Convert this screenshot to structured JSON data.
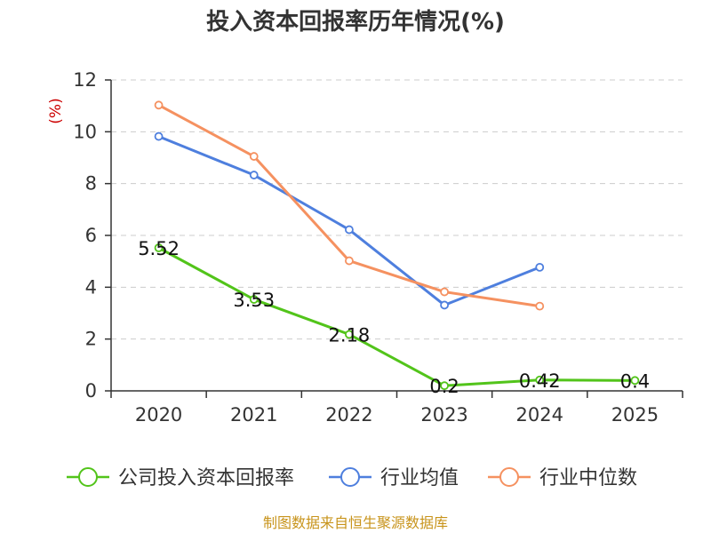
{
  "chart_data": {
    "type": "line",
    "title": "投入资本回报率历年情况(%)",
    "ylabel": "(%)",
    "xlabel": "",
    "categories": [
      "2020",
      "2021",
      "2022",
      "2023",
      "2024",
      "2025"
    ],
    "ylim": [
      0,
      12
    ],
    "yticks": [
      0,
      2,
      4,
      6,
      8,
      10,
      12
    ],
    "grid": true,
    "legend_position": "bottom",
    "series": [
      {
        "name": "公司投入资本回报率",
        "color": "#52c41a",
        "values": [
          5.52,
          3.53,
          2.18,
          0.2,
          0.42,
          0.4
        ],
        "labels": [
          "5.52",
          "3.53",
          "2.18",
          "0.2",
          "0.42",
          "0.4"
        ]
      },
      {
        "name": "行业均值",
        "color": "#4e7fde",
        "values": [
          9.82,
          8.33,
          6.22,
          3.31,
          4.77,
          null
        ]
      },
      {
        "name": "行业中位数",
        "color": "#f59160",
        "values": [
          11.03,
          9.05,
          5.02,
          3.82,
          3.27,
          null
        ]
      }
    ],
    "source": "制图数据来自恒生聚源数据库"
  }
}
